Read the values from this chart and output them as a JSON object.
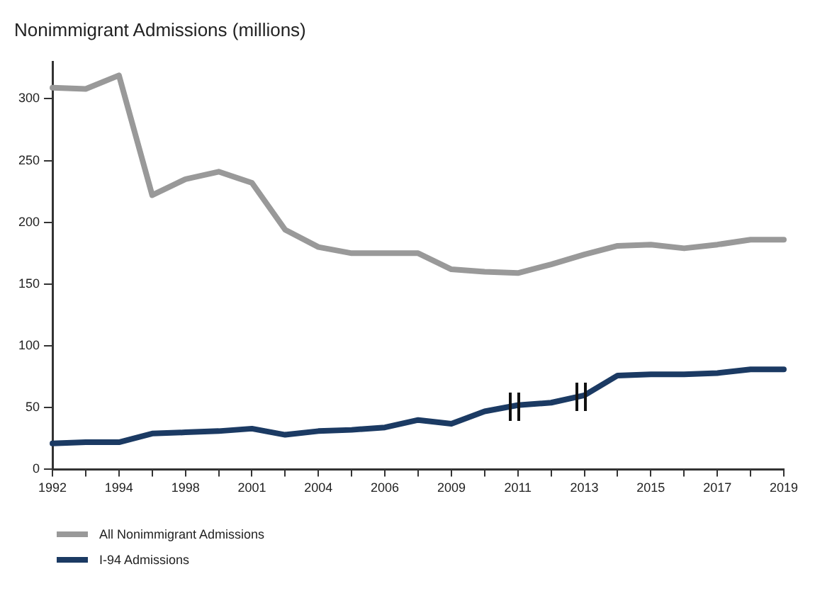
{
  "chart_data": {
    "type": "line",
    "title": "Nonimmigrant Admissions (millions)",
    "categories": [
      "1992",
      null,
      "1994",
      null,
      "1998",
      null,
      "2001",
      null,
      "2004",
      null,
      "2006",
      null,
      "2009",
      null,
      "2011",
      null,
      "2013",
      null,
      "2015",
      null,
      "2017",
      null,
      "2019"
    ],
    "series": [
      {
        "name": "All Nonimmigrant Admissions",
        "color": "#999999",
        "values": [
          309,
          308,
          319,
          222,
          235,
          241,
          232,
          194,
          180,
          175,
          175,
          175,
          162,
          160,
          159,
          166,
          174,
          181,
          182,
          179,
          182,
          186,
          186
        ]
      },
      {
        "name": "I-94 Admissions",
        "color": "#1b3a63",
        "values": [
          21,
          22,
          22,
          29,
          30,
          31,
          33,
          28,
          31,
          32,
          34,
          40,
          37,
          47,
          52,
          54,
          60,
          76,
          77,
          77,
          78,
          81,
          81
        ]
      }
    ],
    "ylim": [
      0,
      330
    ],
    "yticks": [
      0,
      50,
      100,
      150,
      200,
      250,
      300
    ],
    "grid": false,
    "legend": "bottom left",
    "marker": "none",
    "line_style": "solid"
  }
}
